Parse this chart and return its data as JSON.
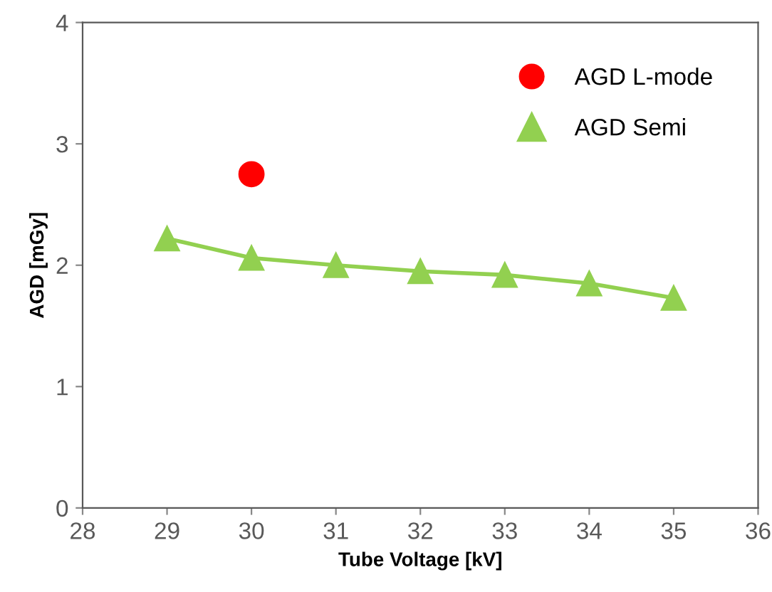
{
  "chart_data": {
    "type": "line",
    "xlabel": "Tube Voltage [kV]",
    "ylabel": "AGD [mGy]",
    "xlim": [
      28,
      36
    ],
    "xticks": [
      28,
      29,
      30,
      31,
      32,
      33,
      34,
      35,
      36
    ],
    "ylim": [
      0,
      4
    ],
    "yticks": [
      0,
      1,
      2,
      3,
      4
    ],
    "grid": false,
    "legend": "top right",
    "series": [
      {
        "name": "AGD L-mode",
        "type": "scatter",
        "marker": "circle",
        "color": "#ff0000",
        "x": [
          30
        ],
        "values": [
          2.75
        ]
      },
      {
        "name": "AGD Semi",
        "marker": "triangle",
        "color": "#92d050",
        "x": [
          29,
          30,
          31,
          32,
          33,
          34,
          35
        ],
        "values": [
          2.22,
          2.06,
          2.0,
          1.95,
          1.92,
          1.85,
          1.73
        ]
      }
    ]
  }
}
